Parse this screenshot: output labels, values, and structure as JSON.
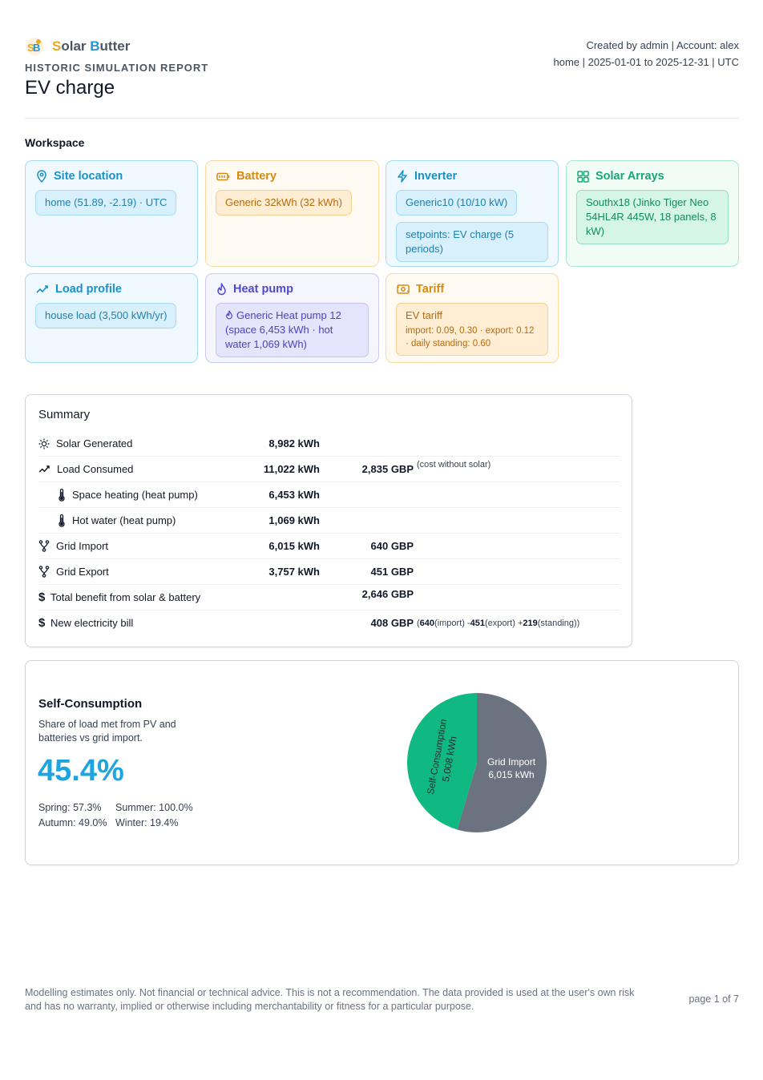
{
  "brand": {
    "name_s": "S",
    "name_olar": "olar ",
    "name_b": "B",
    "name_utter": "utter"
  },
  "header": {
    "report_type": "HISTORIC SIMULATION REPORT",
    "title": "EV charge",
    "meta_line1": "Created by admin | Account: alex",
    "meta_line2": "home | 2025-01-01 to 2025-12-31 | UTC"
  },
  "workspace": {
    "title": "Workspace",
    "site": {
      "title": "Site location",
      "chip": "home (51.89, -2.19) · UTC"
    },
    "battery": {
      "title": "Battery",
      "chip": "Generic 32kWh (32 kWh)"
    },
    "inverter": {
      "title": "Inverter",
      "chip1": "Generic10 (10/10 kW)",
      "chip2": "setpoints: EV charge (5 periods)"
    },
    "solar": {
      "title": "Solar Arrays",
      "chip": "Southx18 (Jinko Tiger Neo 54HL4R 445W, 18 panels, 8 kW)"
    },
    "load": {
      "title": "Load profile",
      "chip": "house load (3,500 kWh/yr)"
    },
    "heatpump": {
      "title": "Heat pump",
      "chip": "Generic Heat pump 12 (space 6,453 kWh · hot water 1,069 kWh)"
    },
    "tariff": {
      "title": "Tariff",
      "chip_name": "EV tariff",
      "chip_detail": "import: 0.09, 0.30 · export: 0.12 · daily standing: 0.60"
    }
  },
  "summary": {
    "title": "Summary",
    "rows": [
      {
        "label": "Solar Generated",
        "kwh": "8,982 kWh",
        "gbp": ""
      },
      {
        "label": "Load Consumed",
        "kwh": "11,022 kWh",
        "gbp": "2,835 GBP",
        "note": "(cost without solar)"
      },
      {
        "label": "Space heating (heat pump)",
        "kwh": "6,453 kWh",
        "gbp": ""
      },
      {
        "label": "Hot water (heat pump)",
        "kwh": "1,069 kWh",
        "gbp": ""
      },
      {
        "label": "Grid Import",
        "kwh": "6,015 kWh",
        "gbp": "640 GBP"
      },
      {
        "label": "Grid Export",
        "kwh": "3,757 kWh",
        "gbp": "451 GBP"
      },
      {
        "label": "Total benefit from solar & battery",
        "kwh": "",
        "gbp": "2,646 GBP"
      },
      {
        "label": "New electricity bill",
        "kwh": "",
        "gbp": "408 GBP",
        "bill_open": "(",
        "bill_import": "640",
        "bill_import_lbl": " (import) - ",
        "bill_export": "451",
        "bill_export_lbl": " (export) + ",
        "bill_standing": "219",
        "bill_standing_lbl": " (standing))"
      }
    ],
    "dollar": "$"
  },
  "self_consumption": {
    "title": "Self-Consumption",
    "description": "Share of load met from PV and batteries vs grid import.",
    "value": "45.4%",
    "spring": "Spring: 57.3%",
    "summer": "Summer: 100.0%",
    "autumn": "Autumn: 49.0%",
    "winter": "Winter: 19.4%"
  },
  "chart_data": {
    "type": "pie",
    "slices": [
      {
        "label": "Grid Import",
        "value": 6015,
        "display": "6,015 kWh",
        "color": "#6b7280"
      },
      {
        "label": "Self-Consumption",
        "value": 5008,
        "display": "5,008 kWh",
        "color": "#10b981"
      }
    ]
  },
  "footer": {
    "disclaimer": "Modelling estimates only. Not financial or technical advice. This is not a recommendation. The data provided is used at the user's own risk and has no warranty, implied or otherwise including merchantability or fitness for a particular purpose.",
    "page": "page 1 of 7"
  }
}
